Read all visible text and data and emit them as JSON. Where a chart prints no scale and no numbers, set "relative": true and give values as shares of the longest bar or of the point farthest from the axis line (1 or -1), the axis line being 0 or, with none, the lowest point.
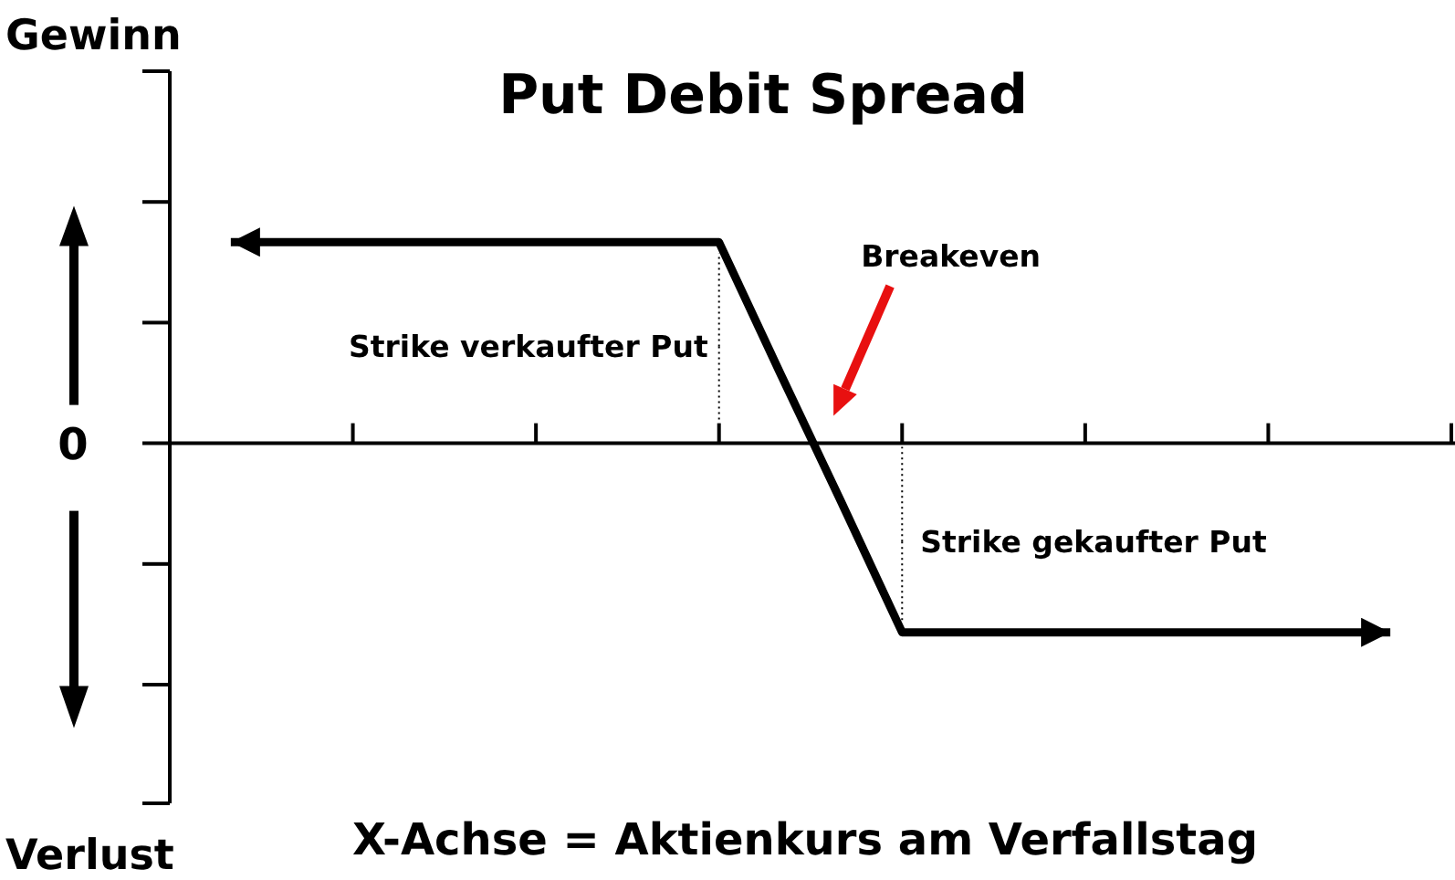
{
  "chart_data": {
    "type": "line",
    "title": "Put Debit Spread",
    "xlabel": "X-Achse = Aktienkurs am Verfallstag",
    "relative": true,
    "categories": [
      null,
      null,
      null,
      null,
      null,
      null,
      null,
      null,
      null,
      null,
      null,
      null,
      null,
      null,
      null,
      null,
      null,
      null,
      null,
      null,
      null,
      null
    ],
    "series": [
      {
        "color": "#000000",
        "values": [
          null,
          1,
          1,
          1,
          1,
          1,
          1,
          1,
          1,
          1,
          0.35,
          -0.29,
          -0.94,
          -0.94,
          -0.94,
          -0.94,
          -0.94,
          -0.94,
          -0.94,
          -0.94,
          -0.94,
          null
        ]
      }
    ],
    "annotations": [
      "Gewinn",
      "Verlust",
      "0",
      "Strike verkaufter Put",
      "Strike gekaufter Put",
      "Breakeven"
    ]
  }
}
